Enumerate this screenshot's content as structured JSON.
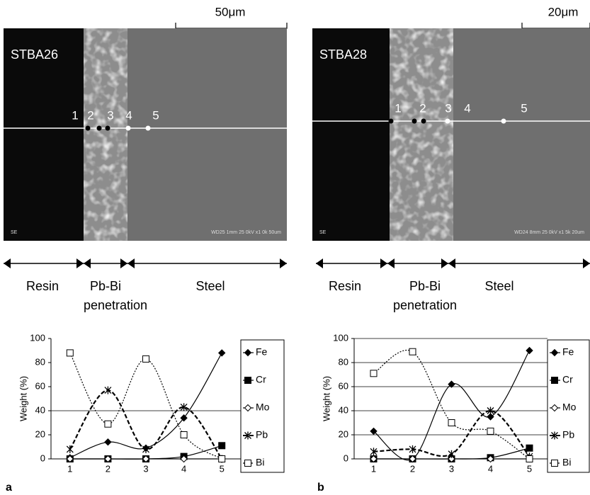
{
  "panels": [
    {
      "scale_bar": "50μm",
      "sample": "STBA26",
      "points": [
        "1",
        "2",
        "3",
        "4",
        "5"
      ],
      "detector": "SE",
      "info": "WD25 1mm 25 0kV x1 0k  50um",
      "regions": {
        "resin": "Resin",
        "pbbi": "Pb-Bi",
        "penetration": "penetration",
        "steel": "Steel"
      },
      "letter": "a"
    },
    {
      "scale_bar": "20μm",
      "sample": "STBA28",
      "points": [
        "1",
        "2",
        "3",
        "4",
        "5"
      ],
      "detector": "SE",
      "info": "WD24 8mm 25 0kV x1 5k  20um",
      "regions": {
        "resin": "Resin",
        "pbbi": "Pb-Bi",
        "penetration": "penetration",
        "steel": "Steel"
      },
      "letter": "b"
    }
  ],
  "chart_data": [
    {
      "type": "line",
      "y_label": "Weight (%)",
      "x": [
        1,
        2,
        3,
        4,
        5
      ],
      "xlim": [
        0.5,
        5.5
      ],
      "xticks": [
        1,
        2,
        3,
        4,
        5
      ],
      "ylim": [
        0,
        100
      ],
      "yticks": [
        0,
        20,
        40,
        60,
        80,
        100
      ],
      "grid": false,
      "hlines": [
        40
      ],
      "series": [
        {
          "name": "Fe",
          "color": "#000000",
          "marker": "diamond-filled",
          "dash": "solid",
          "values": [
            1,
            14,
            9,
            34,
            88
          ]
        },
        {
          "name": "Cr",
          "color": "#000000",
          "marker": "square-filled",
          "dash": "solid",
          "values": [
            0,
            0,
            0,
            2,
            11
          ]
        },
        {
          "name": "Mo",
          "color": "#000000",
          "marker": "diamond-open",
          "dash": "solid",
          "values": [
            0,
            0,
            0,
            0,
            0
          ]
        },
        {
          "name": "Pb",
          "color": "#000000",
          "marker": "asterisk",
          "dash": "dashed",
          "values": [
            8,
            57,
            8,
            43,
            0
          ]
        },
        {
          "name": "Bi",
          "color": "#000000",
          "marker": "square-open",
          "dash": "dotted",
          "values": [
            88,
            29,
            83,
            20,
            0
          ]
        }
      ]
    },
    {
      "type": "line",
      "y_label": "Weight (%)",
      "x": [
        1,
        2,
        3,
        4,
        5
      ],
      "xlim": [
        0.5,
        5.5
      ],
      "xticks": [
        1,
        2,
        3,
        4,
        5
      ],
      "ylim": [
        0,
        100
      ],
      "yticks": [
        0,
        20,
        40,
        60,
        80,
        100
      ],
      "grid": true,
      "hlines": [],
      "series": [
        {
          "name": "Fe",
          "color": "#000000",
          "marker": "diamond-filled",
          "dash": "solid",
          "values": [
            23,
            0,
            62,
            35,
            90
          ]
        },
        {
          "name": "Cr",
          "color": "#000000",
          "marker": "square-filled",
          "dash": "solid",
          "values": [
            0,
            0,
            0,
            1,
            9
          ]
        },
        {
          "name": "Mo",
          "color": "#000000",
          "marker": "diamond-open",
          "dash": "solid",
          "values": [
            0,
            0,
            0,
            0,
            0
          ]
        },
        {
          "name": "Pb",
          "color": "#000000",
          "marker": "asterisk",
          "dash": "dashed",
          "values": [
            6,
            8,
            4,
            40,
            2
          ]
        },
        {
          "name": "Bi",
          "color": "#000000",
          "marker": "square-open",
          "dash": "dotted",
          "values": [
            71,
            89,
            30,
            23,
            0
          ]
        }
      ]
    }
  ]
}
